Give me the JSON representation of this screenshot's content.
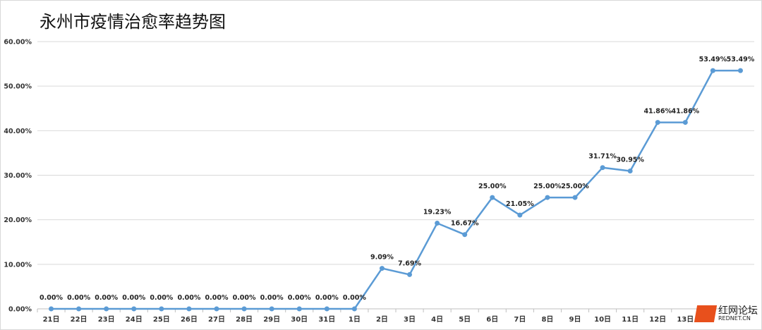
{
  "chart_data": {
    "type": "line",
    "title": "永州市疫情治愈率趋势图",
    "categories": [
      "21日",
      "22日",
      "23日",
      "24日",
      "25日",
      "26日",
      "27日",
      "28日",
      "29日",
      "30日",
      "31日",
      "1日",
      "2日",
      "3日",
      "4日",
      "5日",
      "6日",
      "7日",
      "8日",
      "9日",
      "10日",
      "11日",
      "12日",
      "13日",
      "",
      ""
    ],
    "values": [
      0,
      0,
      0,
      0,
      0,
      0,
      0,
      0,
      0,
      0,
      0,
      0,
      9.09,
      7.69,
      19.23,
      16.67,
      25.0,
      21.05,
      25.0,
      25.0,
      31.71,
      30.95,
      41.86,
      41.86,
      53.49,
      53.49
    ],
    "ylim": [
      0,
      60
    ],
    "yticks": [
      "0.00%",
      "10.00%",
      "20.00%",
      "30.00%",
      "40.00%",
      "50.00%",
      "60.00%"
    ],
    "grid": true,
    "color": "#5b9bd5"
  },
  "watermark": {
    "text": "红网论坛",
    "sub": "REDNET.CN"
  }
}
